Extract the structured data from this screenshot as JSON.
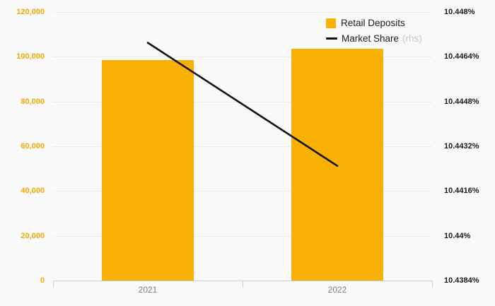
{
  "chart_data": {
    "type": "combo-bar-line",
    "categories": [
      "2021",
      "2022"
    ],
    "series": [
      {
        "name": "Retail Deposits",
        "type": "bar",
        "axis": "left",
        "color": "#F9B005",
        "values": [
          98500,
          103500
        ]
      },
      {
        "name": "Market Share",
        "suffix": "(rhs)",
        "type": "line",
        "axis": "right",
        "color": "#111111",
        "values": [
          10.4469,
          10.4425
        ]
      }
    ],
    "left_axis": {
      "min": 0,
      "max": 120000,
      "tick_values": [
        0,
        20000,
        40000,
        60000,
        80000,
        100000,
        120000
      ],
      "tick_labels": [
        "0",
        "20,000",
        "40,000",
        "60,000",
        "80,000",
        "100,000",
        "120,000"
      ],
      "color": "#F5A800"
    },
    "right_axis": {
      "min": 10.4384,
      "max": 10.448,
      "tick_values": [
        10.4384,
        10.44,
        10.4416,
        10.4432,
        10.4448,
        10.4464,
        10.448
      ],
      "tick_labels": [
        "10.4384%",
        "10.44%",
        "10.4416%",
        "10.4432%",
        "10.4448%",
        "10.4464%",
        "10.448%"
      ],
      "color": "#1a1a1a"
    },
    "grid": true,
    "legend_position": "top-right",
    "background": "#f9f9f9",
    "title": "",
    "xlabel": "",
    "ylabel": ""
  }
}
